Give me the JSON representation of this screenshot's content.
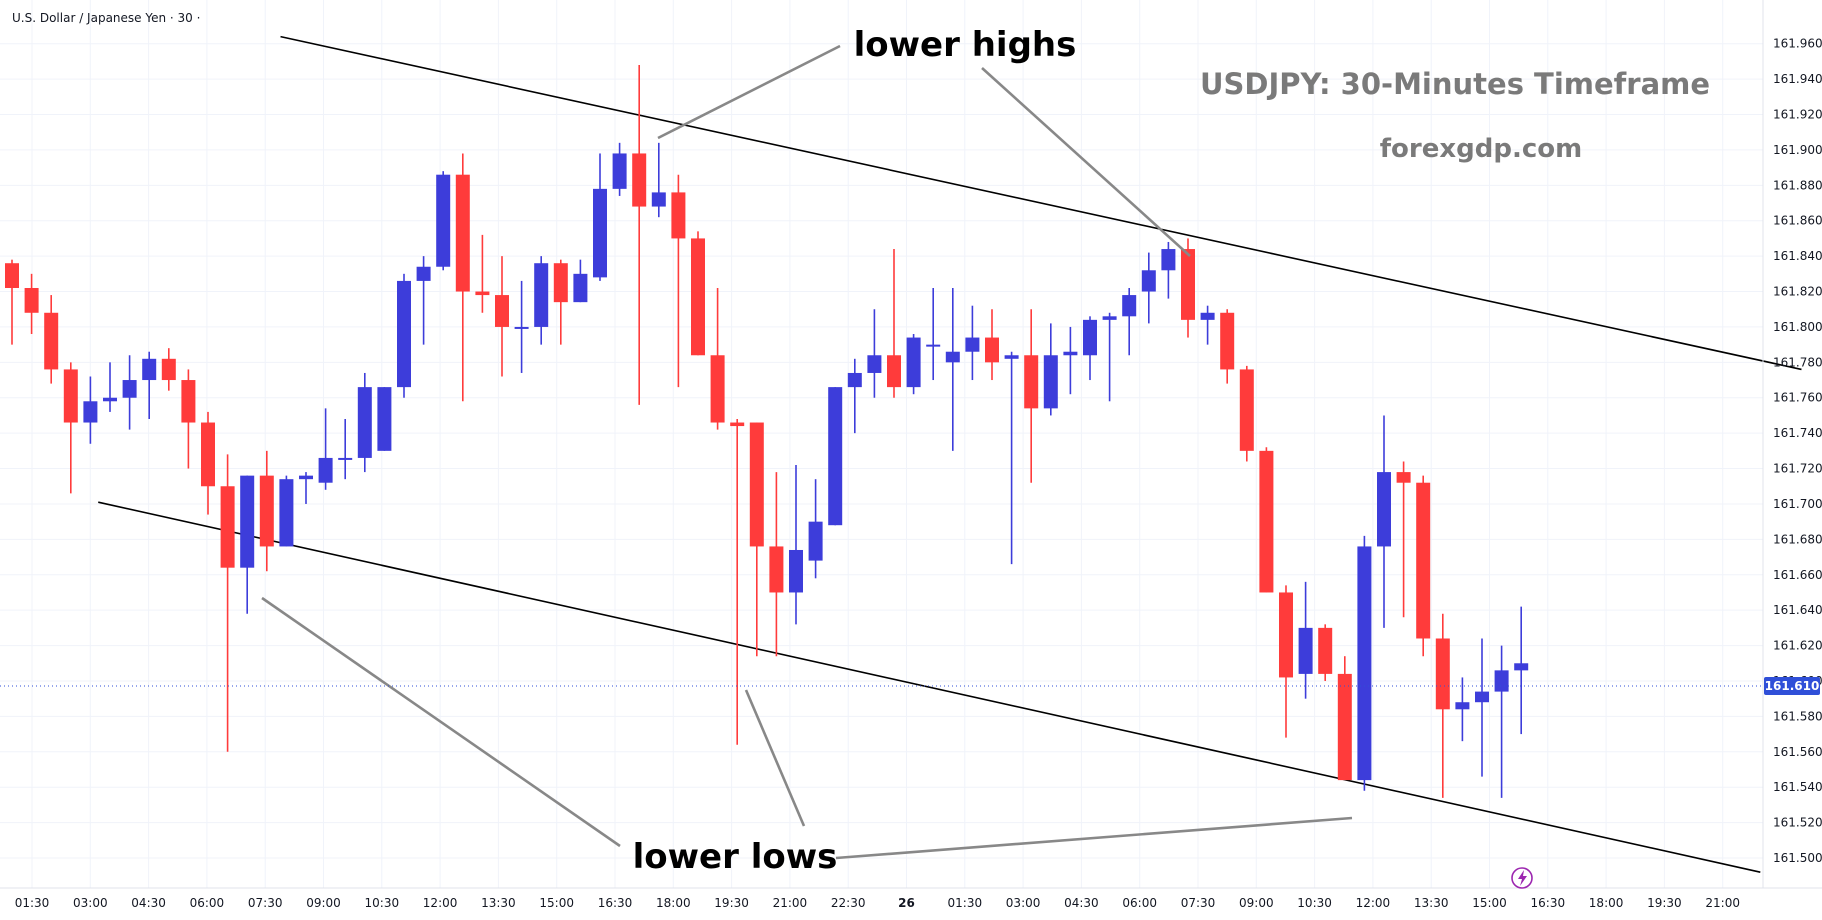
{
  "symbol_line": "U.S. Dollar / Japanese Yen · 30 ·",
  "watermark": {
    "title": "USDJPY: 30-Minutes Timeframe",
    "site": "forexgdp.com"
  },
  "annotations": {
    "lower_highs": "lower highs",
    "lower_lows": "lower lows"
  },
  "last_price_label": "161.610",
  "colors": {
    "bull": "#3d3dda",
    "bear": "#ff3b3b",
    "last_price": "#2f4fd8",
    "grid": "#f0f3fa",
    "trendline": "#000000",
    "pointer": "#888888"
  },
  "chart_data": {
    "type": "candlestick",
    "instrument": "USDJPY",
    "timeframe": "30",
    "y_axis": {
      "min": 161.49,
      "max": 161.98,
      "ticks": [
        "161.960",
        "161.940",
        "161.920",
        "161.900",
        "161.880",
        "161.860",
        "161.840",
        "161.820",
        "161.800",
        "161.780",
        "161.760",
        "161.740",
        "161.720",
        "161.700",
        "161.680",
        "161.660",
        "161.640",
        "161.620",
        "161.600",
        "161.580",
        "161.560",
        "161.540",
        "161.520",
        "161.500"
      ]
    },
    "x_axis": {
      "ticks": [
        "01:30",
        "03:00",
        "04:30",
        "06:00",
        "07:30",
        "09:00",
        "10:30",
        "12:00",
        "13:30",
        "15:00",
        "16:30",
        "18:00",
        "19:30",
        "21:00",
        "22:30",
        "26",
        "01:30",
        "03:00",
        "04:30",
        "06:00",
        "07:30",
        "09:00",
        "10:30",
        "12:00",
        "13:30",
        "15:00",
        "16:30",
        "18:00",
        "19:30",
        "21:00"
      ]
    },
    "last_price": 161.61,
    "candles": [
      {
        "o": 161.836,
        "h": 161.838,
        "l": 161.79,
        "c": 161.822
      },
      {
        "o": 161.822,
        "h": 161.83,
        "l": 161.796,
        "c": 161.808
      },
      {
        "o": 161.808,
        "h": 161.818,
        "l": 161.768,
        "c": 161.776
      },
      {
        "o": 161.776,
        "h": 161.78,
        "l": 161.706,
        "c": 161.746
      },
      {
        "o": 161.746,
        "h": 161.772,
        "l": 161.734,
        "c": 161.758
      },
      {
        "o": 161.758,
        "h": 161.78,
        "l": 161.752,
        "c": 161.76
      },
      {
        "o": 161.76,
        "h": 161.784,
        "l": 161.742,
        "c": 161.77
      },
      {
        "o": 161.77,
        "h": 161.786,
        "l": 161.748,
        "c": 161.782
      },
      {
        "o": 161.782,
        "h": 161.788,
        "l": 161.764,
        "c": 161.77
      },
      {
        "o": 161.77,
        "h": 161.776,
        "l": 161.72,
        "c": 161.746
      },
      {
        "o": 161.746,
        "h": 161.752,
        "l": 161.694,
        "c": 161.71
      },
      {
        "o": 161.71,
        "h": 161.728,
        "l": 161.56,
        "c": 161.664
      },
      {
        "o": 161.664,
        "h": 161.716,
        "l": 161.638,
        "c": 161.716
      },
      {
        "o": 161.716,
        "h": 161.73,
        "l": 161.662,
        "c": 161.676
      },
      {
        "o": 161.676,
        "h": 161.716,
        "l": 161.676,
        "c": 161.714
      },
      {
        "o": 161.714,
        "h": 161.718,
        "l": 161.7,
        "c": 161.716
      },
      {
        "o": 161.712,
        "h": 161.754,
        "l": 161.708,
        "c": 161.726
      },
      {
        "o": 161.726,
        "h": 161.748,
        "l": 161.714,
        "c": 161.726
      },
      {
        "o": 161.726,
        "h": 161.774,
        "l": 161.718,
        "c": 161.766
      },
      {
        "o": 161.73,
        "h": 161.766,
        "l": 161.73,
        "c": 161.766
      },
      {
        "o": 161.766,
        "h": 161.83,
        "l": 161.76,
        "c": 161.826
      },
      {
        "o": 161.826,
        "h": 161.84,
        "l": 161.79,
        "c": 161.834
      },
      {
        "o": 161.834,
        "h": 161.888,
        "l": 161.832,
        "c": 161.886
      },
      {
        "o": 161.886,
        "h": 161.898,
        "l": 161.758,
        "c": 161.82
      },
      {
        "o": 161.82,
        "h": 161.852,
        "l": 161.808,
        "c": 161.818
      },
      {
        "o": 161.818,
        "h": 161.84,
        "l": 161.772,
        "c": 161.8
      },
      {
        "o": 161.8,
        "h": 161.826,
        "l": 161.774,
        "c": 161.8
      },
      {
        "o": 161.8,
        "h": 161.84,
        "l": 161.79,
        "c": 161.836
      },
      {
        "o": 161.836,
        "h": 161.838,
        "l": 161.79,
        "c": 161.814
      },
      {
        "o": 161.814,
        "h": 161.838,
        "l": 161.814,
        "c": 161.83
      },
      {
        "o": 161.828,
        "h": 161.898,
        "l": 161.826,
        "c": 161.878
      },
      {
        "o": 161.878,
        "h": 161.904,
        "l": 161.874,
        "c": 161.898
      },
      {
        "o": 161.898,
        "h": 161.948,
        "l": 161.756,
        "c": 161.868
      },
      {
        "o": 161.868,
        "h": 161.904,
        "l": 161.862,
        "c": 161.876
      },
      {
        "o": 161.876,
        "h": 161.886,
        "l": 161.766,
        "c": 161.85
      },
      {
        "o": 161.85,
        "h": 161.854,
        "l": 161.784,
        "c": 161.784
      },
      {
        "o": 161.784,
        "h": 161.822,
        "l": 161.742,
        "c": 161.746
      },
      {
        "o": 161.746,
        "h": 161.748,
        "l": 161.564,
        "c": 161.744
      },
      {
        "o": 161.746,
        "h": 161.746,
        "l": 161.614,
        "c": 161.676
      },
      {
        "o": 161.676,
        "h": 161.718,
        "l": 161.614,
        "c": 161.65
      },
      {
        "o": 161.65,
        "h": 161.722,
        "l": 161.632,
        "c": 161.674
      },
      {
        "o": 161.668,
        "h": 161.714,
        "l": 161.658,
        "c": 161.69
      },
      {
        "o": 161.688,
        "h": 161.766,
        "l": 161.688,
        "c": 161.766
      },
      {
        "o": 161.766,
        "h": 161.782,
        "l": 161.74,
        "c": 161.774
      },
      {
        "o": 161.774,
        "h": 161.81,
        "l": 161.76,
        "c": 161.784
      },
      {
        "o": 161.784,
        "h": 161.844,
        "l": 161.76,
        "c": 161.766
      },
      {
        "o": 161.766,
        "h": 161.796,
        "l": 161.762,
        "c": 161.794
      },
      {
        "o": 161.79,
        "h": 161.822,
        "l": 161.77,
        "c": 161.79
      },
      {
        "o": 161.78,
        "h": 161.822,
        "l": 161.73,
        "c": 161.786
      },
      {
        "o": 161.786,
        "h": 161.812,
        "l": 161.77,
        "c": 161.794
      },
      {
        "o": 161.794,
        "h": 161.81,
        "l": 161.77,
        "c": 161.78
      },
      {
        "o": 161.782,
        "h": 161.786,
        "l": 161.666,
        "c": 161.784
      },
      {
        "o": 161.784,
        "h": 161.81,
        "l": 161.712,
        "c": 161.754
      },
      {
        "o": 161.754,
        "h": 161.802,
        "l": 161.75,
        "c": 161.784
      },
      {
        "o": 161.784,
        "h": 161.8,
        "l": 161.762,
        "c": 161.786
      },
      {
        "o": 161.784,
        "h": 161.806,
        "l": 161.77,
        "c": 161.804
      },
      {
        "o": 161.804,
        "h": 161.808,
        "l": 161.758,
        "c": 161.806
      },
      {
        "o": 161.806,
        "h": 161.822,
        "l": 161.784,
        "c": 161.818
      },
      {
        "o": 161.82,
        "h": 161.842,
        "l": 161.802,
        "c": 161.832
      },
      {
        "o": 161.832,
        "h": 161.848,
        "l": 161.816,
        "c": 161.844
      },
      {
        "o": 161.844,
        "h": 161.85,
        "l": 161.794,
        "c": 161.804
      },
      {
        "o": 161.804,
        "h": 161.812,
        "l": 161.79,
        "c": 161.808
      },
      {
        "o": 161.808,
        "h": 161.81,
        "l": 161.768,
        "c": 161.776
      },
      {
        "o": 161.776,
        "h": 161.778,
        "l": 161.724,
        "c": 161.73
      },
      {
        "o": 161.73,
        "h": 161.732,
        "l": 161.65,
        "c": 161.65
      },
      {
        "o": 161.65,
        "h": 161.654,
        "l": 161.568,
        "c": 161.602
      },
      {
        "o": 161.604,
        "h": 161.656,
        "l": 161.59,
        "c": 161.63
      },
      {
        "o": 161.63,
        "h": 161.632,
        "l": 161.6,
        "c": 161.604
      },
      {
        "o": 161.604,
        "h": 161.614,
        "l": 161.546,
        "c": 161.544
      },
      {
        "o": 161.544,
        "h": 161.682,
        "l": 161.538,
        "c": 161.676
      },
      {
        "o": 161.676,
        "h": 161.75,
        "l": 161.63,
        "c": 161.718
      },
      {
        "o": 161.718,
        "h": 161.724,
        "l": 161.636,
        "c": 161.712
      },
      {
        "o": 161.712,
        "h": 161.716,
        "l": 161.614,
        "c": 161.624
      },
      {
        "o": 161.624,
        "h": 161.638,
        "l": 161.534,
        "c": 161.584
      },
      {
        "o": 161.584,
        "h": 161.602,
        "l": 161.566,
        "c": 161.588
      },
      {
        "o": 161.588,
        "h": 161.624,
        "l": 161.546,
        "c": 161.594
      },
      {
        "o": 161.594,
        "h": 161.62,
        "l": 161.534,
        "c": 161.606
      },
      {
        "o": 161.606,
        "h": 161.642,
        "l": 161.57,
        "c": 161.61
      }
    ],
    "trendlines": [
      {
        "name": "upper",
        "x1_index": 13.7,
        "y1": 161.964,
        "x2_index": 91.3,
        "y2": 161.776
      },
      {
        "name": "lower",
        "x1_index": 4.4,
        "y1": 161.701,
        "x2_index": 89.2,
        "y2": 161.492
      }
    ]
  }
}
